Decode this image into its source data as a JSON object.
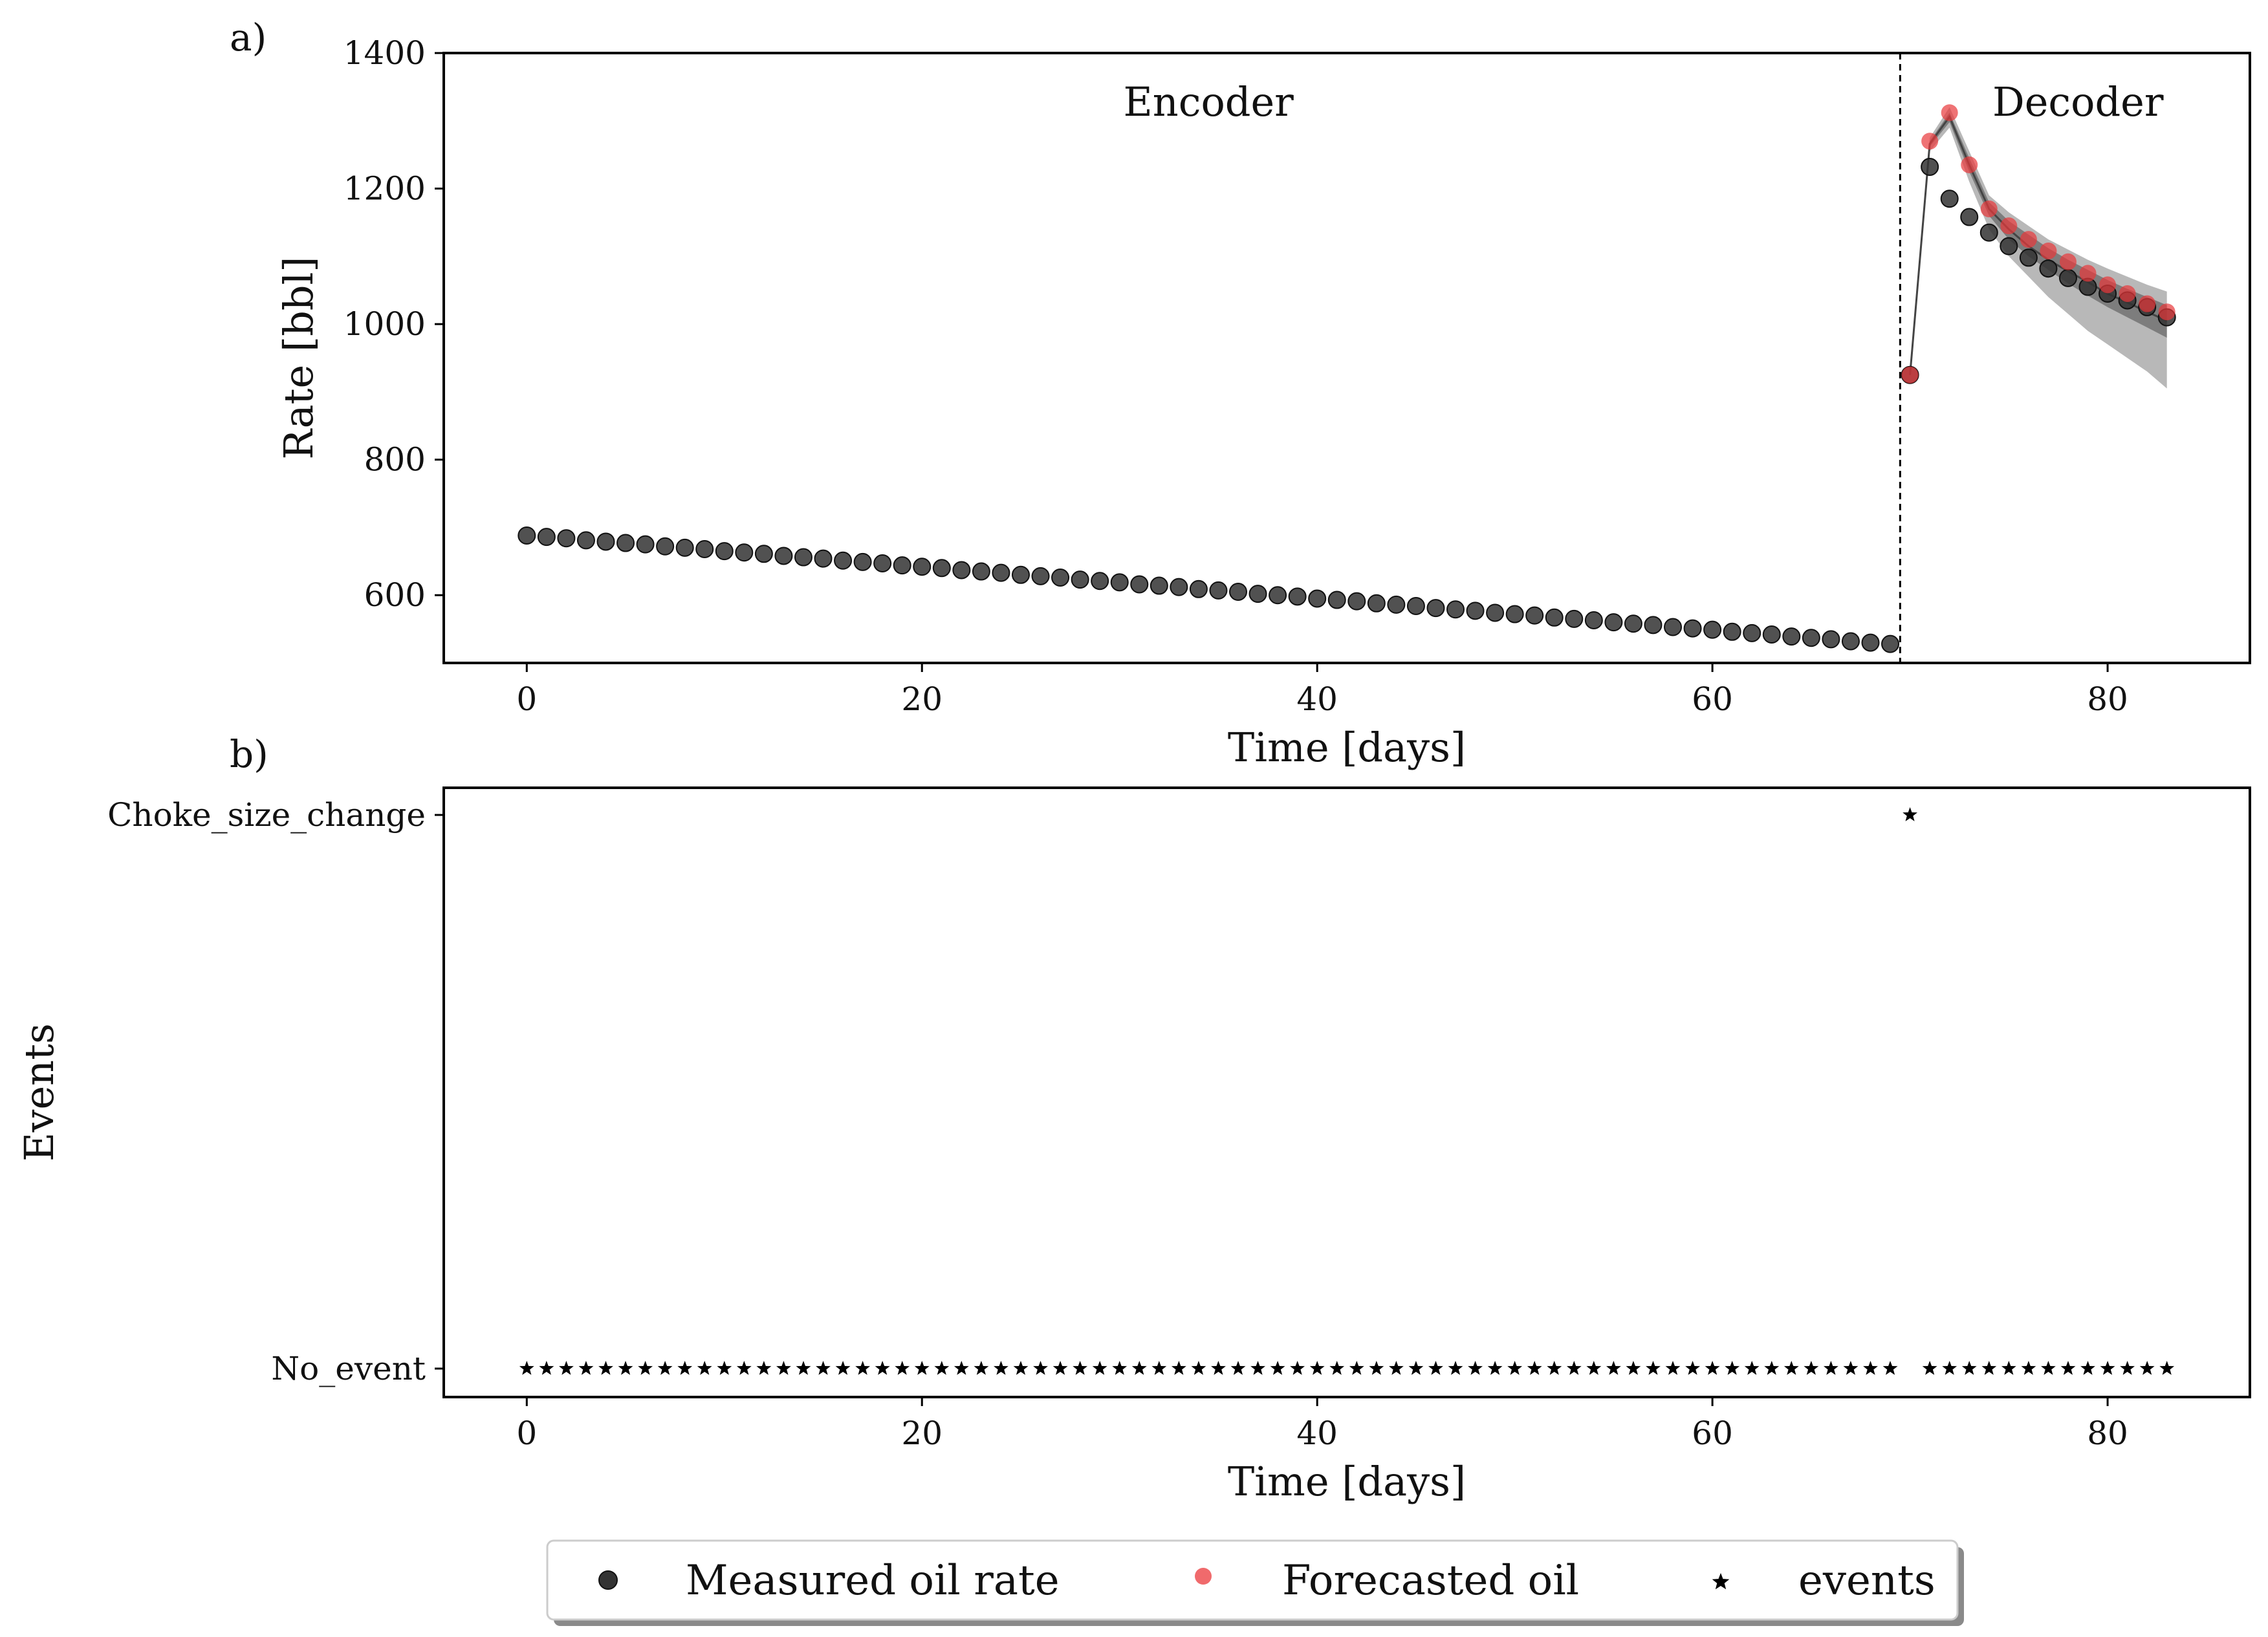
{
  "chart_data": [
    {
      "panel_label": "a)",
      "type": "scatter",
      "xlabel": "Time [days]",
      "ylabel": "Rate [bbl]",
      "xlim": [
        -4.2,
        87.2
      ],
      "ylim": [
        500,
        1400
      ],
      "xticks": [
        "0",
        "20",
        "40",
        "60",
        "80"
      ],
      "yticks": [
        "600",
        "800",
        "1000",
        "1200",
        "1400"
      ],
      "annotations": [
        {
          "text": "Encoder"
        },
        {
          "text": "Decoder"
        }
      ],
      "split_x": 69.5,
      "series": [
        {
          "name": "Measured oil rate",
          "color": "#333333",
          "x": [
            0,
            1,
            2,
            3,
            4,
            5,
            6,
            7,
            8,
            9,
            10,
            11,
            12,
            13,
            14,
            15,
            16,
            17,
            18,
            19,
            20,
            21,
            22,
            23,
            24,
            25,
            26,
            27,
            28,
            29,
            30,
            31,
            32,
            33,
            34,
            35,
            36,
            37,
            38,
            39,
            40,
            41,
            42,
            43,
            44,
            45,
            46,
            47,
            48,
            49,
            50,
            51,
            52,
            53,
            54,
            55,
            56,
            57,
            58,
            59,
            60,
            61,
            62,
            63,
            64,
            65,
            66,
            67,
            68,
            69,
            70,
            71,
            72,
            73,
            74,
            75,
            76,
            77,
            78,
            79,
            80,
            81,
            82,
            83
          ],
          "values": [
            688,
            686,
            684,
            681,
            679,
            677,
            675,
            672,
            670,
            668,
            665,
            663,
            661,
            658,
            656,
            654,
            651,
            649,
            647,
            644,
            642,
            640,
            637,
            635,
            633,
            630,
            628,
            626,
            623,
            621,
            619,
            616,
            614,
            612,
            609,
            607,
            605,
            602,
            600,
            598,
            595,
            593,
            591,
            588,
            586,
            584,
            581,
            579,
            577,
            574,
            572,
            570,
            567,
            565,
            563,
            560,
            558,
            556,
            553,
            551,
            549,
            546,
            544,
            542,
            539,
            537,
            535,
            532,
            530,
            528,
            925,
            1232,
            1185,
            1158,
            1135,
            1115,
            1098,
            1082,
            1068,
            1055,
            1045,
            1035,
            1025,
            1010
          ]
        },
        {
          "name": "Forecasted oil",
          "color": "#e8383a",
          "x": [
            70,
            71,
            72,
            73,
            74,
            75,
            76,
            77,
            78,
            79,
            80,
            81,
            82,
            83
          ],
          "values": [
            925,
            1270,
            1312,
            1235,
            1170,
            1145,
            1125,
            1108,
            1092,
            1075,
            1058,
            1045,
            1030,
            1018
          ]
        }
      ],
      "forecast_band": {
        "x": [
          70,
          71,
          72,
          73,
          74,
          75,
          76,
          77,
          78,
          79,
          80,
          81,
          82,
          83
        ],
        "outer_low": [
          925,
          1255,
          1290,
          1210,
          1140,
          1100,
          1070,
          1040,
          1015,
          990,
          970,
          950,
          930,
          905
        ],
        "outer_high": [
          925,
          1275,
          1320,
          1255,
          1190,
          1165,
          1145,
          1125,
          1110,
          1095,
          1082,
          1070,
          1058,
          1048
        ],
        "inner_low": [
          925,
          1262,
          1298,
          1225,
          1160,
          1125,
          1100,
          1080,
          1060,
          1042,
          1025,
          1010,
          995,
          980
        ],
        "inner_high": [
          925,
          1270,
          1312,
          1245,
          1180,
          1152,
          1132,
          1112,
          1095,
          1080,
          1065,
          1052,
          1040,
          1028
        ],
        "median": [
          925,
          1266,
          1306,
          1235,
          1170,
          1140,
          1115,
          1095,
          1078,
          1062,
          1045,
          1032,
          1018,
          1005
        ]
      }
    },
    {
      "panel_label": "b)",
      "type": "scatter",
      "xlabel": "Time [days]",
      "ylabel": "Events",
      "xlim": [
        -4.2,
        87.2
      ],
      "xticks": [
        "0",
        "20",
        "40",
        "60",
        "80"
      ],
      "categories": [
        "No_event",
        "Choke_size_change"
      ],
      "series": [
        {
          "name": "events",
          "color": "#000000",
          "x": [
            0,
            1,
            2,
            3,
            4,
            5,
            6,
            7,
            8,
            9,
            10,
            11,
            12,
            13,
            14,
            15,
            16,
            17,
            18,
            19,
            20,
            21,
            22,
            23,
            24,
            25,
            26,
            27,
            28,
            29,
            30,
            31,
            32,
            33,
            34,
            35,
            36,
            37,
            38,
            39,
            40,
            41,
            42,
            43,
            44,
            45,
            46,
            47,
            48,
            49,
            50,
            51,
            52,
            53,
            54,
            55,
            56,
            57,
            58,
            59,
            60,
            61,
            62,
            63,
            64,
            65,
            66,
            67,
            68,
            69,
            70,
            71,
            72,
            73,
            74,
            75,
            76,
            77,
            78,
            79,
            80,
            81,
            82,
            83
          ],
          "categories_per_point": [
            "No_event",
            "No_event",
            "No_event",
            "No_event",
            "No_event",
            "No_event",
            "No_event",
            "No_event",
            "No_event",
            "No_event",
            "No_event",
            "No_event",
            "No_event",
            "No_event",
            "No_event",
            "No_event",
            "No_event",
            "No_event",
            "No_event",
            "No_event",
            "No_event",
            "No_event",
            "No_event",
            "No_event",
            "No_event",
            "No_event",
            "No_event",
            "No_event",
            "No_event",
            "No_event",
            "No_event",
            "No_event",
            "No_event",
            "No_event",
            "No_event",
            "No_event",
            "No_event",
            "No_event",
            "No_event",
            "No_event",
            "No_event",
            "No_event",
            "No_event",
            "No_event",
            "No_event",
            "No_event",
            "No_event",
            "No_event",
            "No_event",
            "No_event",
            "No_event",
            "No_event",
            "No_event",
            "No_event",
            "No_event",
            "No_event",
            "No_event",
            "No_event",
            "No_event",
            "No_event",
            "No_event",
            "No_event",
            "No_event",
            "No_event",
            "No_event",
            "No_event",
            "No_event",
            "No_event",
            "No_event",
            "No_event",
            "Choke_size_change",
            "No_event",
            "No_event",
            "No_event",
            "No_event",
            "No_event",
            "No_event",
            "No_event",
            "No_event",
            "No_event",
            "No_event",
            "No_event",
            "No_event",
            "No_event"
          ]
        }
      ]
    }
  ],
  "legend": {
    "placement": "bottom-center",
    "items": [
      {
        "label": "Measured oil rate",
        "marker": "circle",
        "color": "#333333"
      },
      {
        "label": "Forecasted oil",
        "marker": "circle",
        "color": "#f06a6c"
      },
      {
        "label": "events",
        "marker": "star",
        "color": "#000000"
      }
    ]
  }
}
